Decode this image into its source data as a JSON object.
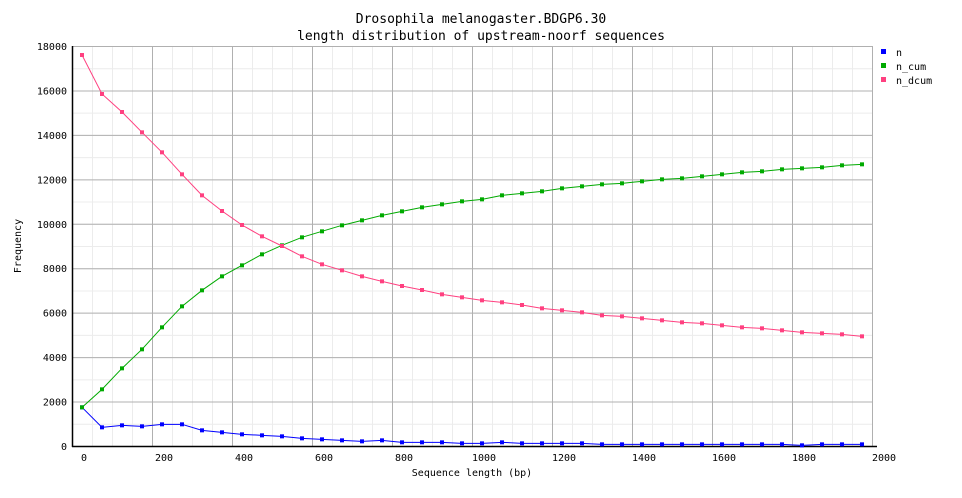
{
  "chart_data": {
    "type": "line",
    "title": "Drosophila melanogaster.BDGP6.30",
    "subtitle": "length distribution of upstream-noorf sequences",
    "xlabel": "Sequence length (bp)",
    "ylabel": "Frequency",
    "xlim": [
      0,
      2000
    ],
    "ylim": [
      0,
      18000
    ],
    "xticks": [
      0,
      200,
      400,
      600,
      800,
      1000,
      1200,
      1400,
      1600,
      1800,
      2000
    ],
    "yticks": [
      0,
      2000,
      4000,
      6000,
      8000,
      10000,
      12000,
      14000,
      16000,
      18000
    ],
    "grid": true,
    "legend_position": "right",
    "x": [
      25,
      75,
      125,
      175,
      225,
      275,
      325,
      375,
      425,
      475,
      525,
      575,
      625,
      675,
      725,
      775,
      825,
      875,
      925,
      975,
      1025,
      1075,
      1125,
      1175,
      1225,
      1275,
      1325,
      1375,
      1425,
      1475,
      1525,
      1575,
      1625,
      1675,
      1725,
      1775,
      1825,
      1875,
      1925,
      1975
    ],
    "series": [
      {
        "name": "n",
        "color": "#0000ff",
        "values": [
          1740,
          840,
          930,
          885,
          975,
          975,
          705,
          615,
          525,
          480,
          435,
          345,
          300,
          255,
          210,
          255,
          165,
          165,
          165,
          120,
          120,
          165,
          120,
          120,
          120,
          120,
          75,
          75,
          75,
          75,
          75,
          75,
          75,
          75,
          75,
          75,
          30,
          75,
          75,
          75
        ]
      },
      {
        "name": "n_cum",
        "color": "#00aa00",
        "values": [
          1740,
          2550,
          3495,
          4350,
          5340,
          6285,
          7005,
          7635,
          8130,
          8625,
          9030,
          9390,
          9660,
          9930,
          10155,
          10380,
          10560,
          10740,
          10875,
          11010,
          11100,
          11280,
          11370,
          11460,
          11595,
          11685,
          11775,
          11820,
          11910,
          12000,
          12045,
          12135,
          12225,
          12315,
          12360,
          12450,
          12495,
          12540,
          12630,
          12675
        ]
      },
      {
        "name": "n_dcum",
        "color": "#ff4080",
        "values": [
          17595,
          15840,
          15030,
          14115,
          13215,
          12225,
          11280,
          10575,
          9945,
          9435,
          9000,
          8535,
          8175,
          7905,
          7635,
          7410,
          7200,
          7020,
          6825,
          6690,
          6555,
          6465,
          6345,
          6195,
          6105,
          6015,
          5880,
          5835,
          5745,
          5655,
          5565,
          5520,
          5430,
          5340,
          5295,
          5205,
          5115,
          5070,
          5025,
          4935
        ]
      }
    ]
  }
}
